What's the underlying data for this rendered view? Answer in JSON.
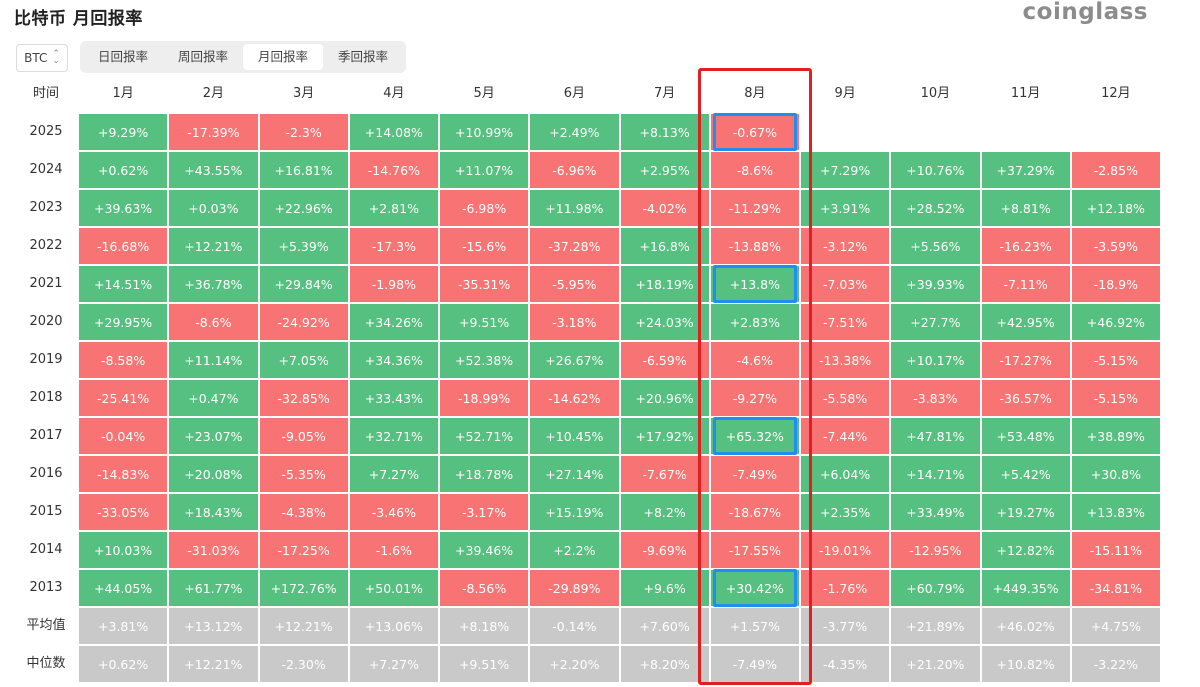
{
  "title": "比特币 月回报率",
  "brand": "coinglass",
  "coin_select": {
    "value": "BTC"
  },
  "tabs": [
    {
      "label": "日回报率",
      "active": false
    },
    {
      "label": "周回报率",
      "active": false
    },
    {
      "label": "月回报率",
      "active": true
    },
    {
      "label": "季回报率",
      "active": false
    }
  ],
  "colors": {
    "positive": "#55c07f",
    "negative": "#f87474",
    "stat": "#c9c9c9",
    "highlight_column": "#e02020",
    "highlight_cell": "#1e8ff0"
  },
  "chart_data": {
    "type": "heatmap",
    "corner_label": "时间",
    "columns": [
      "1月",
      "2月",
      "3月",
      "4月",
      "5月",
      "6月",
      "7月",
      "8月",
      "9月",
      "10月",
      "11月",
      "12月"
    ],
    "rows": [
      {
        "label": "2025",
        "values": [
          "+9.29%",
          "-17.39%",
          "-2.3%",
          "+14.08%",
          "+10.99%",
          "+2.49%",
          "+8.13%",
          "-0.67%"
        ]
      },
      {
        "label": "2024",
        "values": [
          "+0.62%",
          "+43.55%",
          "+16.81%",
          "-14.76%",
          "+11.07%",
          "-6.96%",
          "+2.95%",
          "-8.6%",
          "+7.29%",
          "+10.76%",
          "+37.29%",
          "-2.85%"
        ]
      },
      {
        "label": "2023",
        "values": [
          "+39.63%",
          "+0.03%",
          "+22.96%",
          "+2.81%",
          "-6.98%",
          "+11.98%",
          "-4.02%",
          "-11.29%",
          "+3.91%",
          "+28.52%",
          "+8.81%",
          "+12.18%"
        ]
      },
      {
        "label": "2022",
        "values": [
          "-16.68%",
          "+12.21%",
          "+5.39%",
          "-17.3%",
          "-15.6%",
          "-37.28%",
          "+16.8%",
          "-13.88%",
          "-3.12%",
          "+5.56%",
          "-16.23%",
          "-3.59%"
        ]
      },
      {
        "label": "2021",
        "values": [
          "+14.51%",
          "+36.78%",
          "+29.84%",
          "-1.98%",
          "-35.31%",
          "-5.95%",
          "+18.19%",
          "+13.8%",
          "-7.03%",
          "+39.93%",
          "-7.11%",
          "-18.9%"
        ]
      },
      {
        "label": "2020",
        "values": [
          "+29.95%",
          "-8.6%",
          "-24.92%",
          "+34.26%",
          "+9.51%",
          "-3.18%",
          "+24.03%",
          "+2.83%",
          "-7.51%",
          "+27.7%",
          "+42.95%",
          "+46.92%"
        ]
      },
      {
        "label": "2019",
        "values": [
          "-8.58%",
          "+11.14%",
          "+7.05%",
          "+34.36%",
          "+52.38%",
          "+26.67%",
          "-6.59%",
          "-4.6%",
          "-13.38%",
          "+10.17%",
          "-17.27%",
          "-5.15%"
        ]
      },
      {
        "label": "2018",
        "values": [
          "-25.41%",
          "+0.47%",
          "-32.85%",
          "+33.43%",
          "-18.99%",
          "-14.62%",
          "+20.96%",
          "-9.27%",
          "-5.58%",
          "-3.83%",
          "-36.57%",
          "-5.15%"
        ]
      },
      {
        "label": "2017",
        "values": [
          "-0.04%",
          "+23.07%",
          "-9.05%",
          "+32.71%",
          "+52.71%",
          "+10.45%",
          "+17.92%",
          "+65.32%",
          "-7.44%",
          "+47.81%",
          "+53.48%",
          "+38.89%"
        ]
      },
      {
        "label": "2016",
        "values": [
          "-14.83%",
          "+20.08%",
          "-5.35%",
          "+7.27%",
          "+18.78%",
          "+27.14%",
          "-7.67%",
          "-7.49%",
          "+6.04%",
          "+14.71%",
          "+5.42%",
          "+30.8%"
        ]
      },
      {
        "label": "2015",
        "values": [
          "-33.05%",
          "+18.43%",
          "-4.38%",
          "-3.46%",
          "-3.17%",
          "+15.19%",
          "+8.2%",
          "-18.67%",
          "+2.35%",
          "+33.49%",
          "+19.27%",
          "+13.83%"
        ]
      },
      {
        "label": "2014",
        "values": [
          "+10.03%",
          "-31.03%",
          "-17.25%",
          "-1.6%",
          "+39.46%",
          "+2.2%",
          "-9.69%",
          "-17.55%",
          "-19.01%",
          "-12.95%",
          "+12.82%",
          "-15.11%"
        ]
      },
      {
        "label": "2013",
        "values": [
          "+44.05%",
          "+61.77%",
          "+172.76%",
          "+50.01%",
          "-8.56%",
          "-29.89%",
          "+9.6%",
          "+30.42%",
          "-1.76%",
          "+60.79%",
          "+449.35%",
          "-34.81%"
        ]
      }
    ],
    "summary_rows": [
      {
        "label": "平均值",
        "values": [
          "+3.81%",
          "+13.12%",
          "+12.21%",
          "+13.06%",
          "+8.18%",
          "-0.14%",
          "+7.60%",
          "+1.57%",
          "-3.77%",
          "+21.89%",
          "+46.02%",
          "+4.75%"
        ]
      },
      {
        "label": "中位数",
        "values": [
          "+0.62%",
          "+12.21%",
          "-2.30%",
          "+7.27%",
          "+9.51%",
          "+2.20%",
          "+8.20%",
          "-7.49%",
          "-4.35%",
          "+21.20%",
          "+10.82%",
          "-3.22%"
        ]
      }
    ],
    "highlighted_column": "8月",
    "highlighted_cells": [
      {
        "row": "2025",
        "column": "8月"
      },
      {
        "row": "2021",
        "column": "8月"
      },
      {
        "row": "2017",
        "column": "8月"
      },
      {
        "row": "2013",
        "column": "8月"
      }
    ]
  }
}
